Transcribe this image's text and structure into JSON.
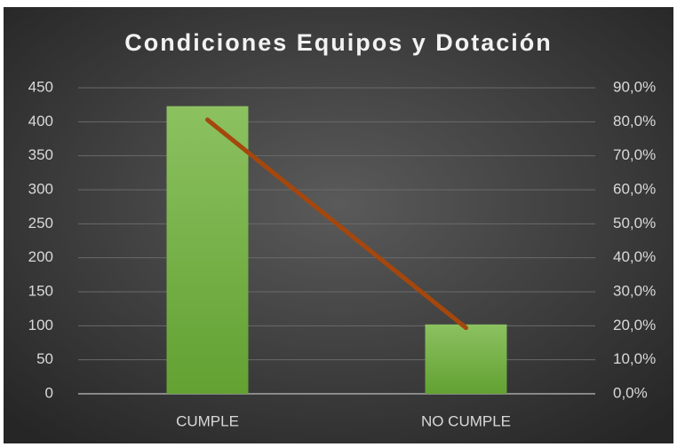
{
  "chart_data": {
    "type": "bar-line",
    "title": "Condiciones Equipos y Dotación",
    "categories": [
      "CUMPLE",
      "NO CUMPLE"
    ],
    "series": [
      {
        "type": "bar",
        "color": "#70ad47",
        "values": [
          423,
          102
        ]
      },
      {
        "type": "line",
        "color": "#a5470d",
        "axis": "y2",
        "values": [
          80.6,
          19.4
        ]
      }
    ],
    "ylim": [
      0,
      450
    ],
    "yticks": [
      0,
      50,
      100,
      150,
      200,
      250,
      300,
      350,
      400,
      450
    ],
    "y2lim": [
      0,
      90
    ],
    "y2ticks": [
      {
        "value": 0,
        "label": "0,0%"
      },
      {
        "value": 10,
        "label": "10,0%"
      },
      {
        "value": 20,
        "label": "20,0%"
      },
      {
        "value": 30,
        "label": "30,0%"
      },
      {
        "value": 40,
        "label": "40,0%"
      },
      {
        "value": 50,
        "label": "50,0%"
      },
      {
        "value": 60,
        "label": "60,0%"
      },
      {
        "value": 70,
        "label": "70,0%"
      },
      {
        "value": 80,
        "label": "80,0%"
      },
      {
        "value": 90,
        "label": "90,0%"
      }
    ],
    "grid": true
  }
}
